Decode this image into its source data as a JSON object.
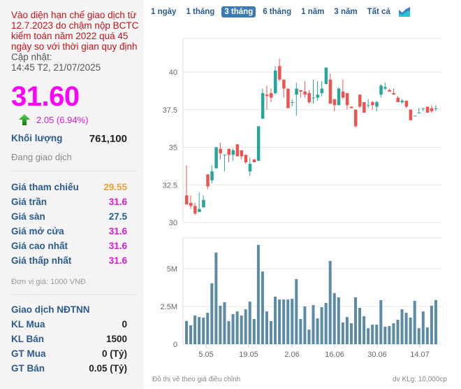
{
  "notice": "Vào diện hạn chế giao dịch từ 12.7.2023 do chậm nộp BCTC kiểm toán năm 2022 quá 45 ngày so với thời gian quy định",
  "update_label": "Cập nhật:",
  "update_time": "14:45 T2, 21/07/2025",
  "price": "31.60",
  "change": "2.05 (6.94%)",
  "change_direction_icon": "arrow-up-icon",
  "volume_label": "Khối lượng",
  "volume_value": "761,100",
  "status": "Đang giao dịch",
  "prices": [
    {
      "label": "Giá tham chiếu",
      "value": "29.55",
      "color": "#f0a030"
    },
    {
      "label": "Giá trần",
      "value": "31.6",
      "color": "#d61ad6"
    },
    {
      "label": "Giá sàn",
      "value": "27.5",
      "color": "#1f5f8b"
    },
    {
      "label": "Giá mở cửa",
      "value": "31.6",
      "color": "#d61ad6"
    },
    {
      "label": "Giá cao nhất",
      "value": "31.6",
      "color": "#d61ad6"
    },
    {
      "label": "Giá thấp nhất",
      "value": "31.6",
      "color": "#d61ad6"
    }
  ],
  "unit": "Đơn vị giá: 1000 VNĐ",
  "foreign": {
    "title": "Giao dịch NĐTNN",
    "rows": [
      {
        "label": "KL Mua",
        "value": "0"
      },
      {
        "label": "KL Bán",
        "value": "1500"
      },
      {
        "label": "GT Mua",
        "value": "0 (Tỷ)"
      },
      {
        "label": "GT Bán",
        "value": "0.05 (Tỷ)"
      }
    ]
  },
  "tabs": [
    {
      "label": "1 ngày",
      "active": false
    },
    {
      "label": "1 tháng",
      "active": false
    },
    {
      "label": "3 tháng",
      "active": true
    },
    {
      "label": "6 tháng",
      "active": false
    },
    {
      "label": "1 năm",
      "active": false
    },
    {
      "label": "3 năm",
      "active": false
    },
    {
      "label": "Tất cả",
      "active": false
    }
  ],
  "footer_left": "Đồ thị vẽ theo giá điều chỉnh",
  "footer_right": "dv KLg: 10,000cp",
  "colors": {
    "up": "#26a69a",
    "down": "#ef5350",
    "volume": "#5b8ba6"
  },
  "chart_data": [
    {
      "type": "candlestick",
      "title": "",
      "ylim": [
        30,
        42.5
      ],
      "yticks": [
        "30",
        "32.5",
        "35",
        "37.5",
        "40"
      ],
      "grid": true,
      "ohlc": [
        [
          31.8,
          33.8,
          31.2,
          31.2
        ],
        [
          31.3,
          31.8,
          30.9,
          31.1
        ],
        [
          31.1,
          31.3,
          30.5,
          30.6
        ],
        [
          30.7,
          32.0,
          30.7,
          30.9
        ],
        [
          31.0,
          31.8,
          31.0,
          31.5
        ],
        [
          33.2,
          33.2,
          32.2,
          32.4
        ],
        [
          32.8,
          33.8,
          32.6,
          33.4
        ],
        [
          33.6,
          35.0,
          33.6,
          35.0
        ],
        [
          34.9,
          35.3,
          34.2,
          34.6
        ],
        [
          34.5,
          34.5,
          33.4,
          34.5
        ],
        [
          34.9,
          34.9,
          34.0,
          34.5
        ],
        [
          34.5,
          34.9,
          34.1,
          34.8
        ],
        [
          35.2,
          35.2,
          34.4,
          34.4
        ],
        [
          34.8,
          34.8,
          34.2,
          34.4
        ],
        [
          34.5,
          34.5,
          33.9,
          34.0
        ],
        [
          33.4,
          34.3,
          33.1,
          33.9
        ],
        [
          34.2,
          34.2,
          34.0,
          34.0
        ],
        [
          34.1,
          36.4,
          34.1,
          36.4
        ],
        [
          36.9,
          38.9,
          36.9,
          38.6
        ],
        [
          38.5,
          39.1,
          37.5,
          38.4
        ],
        [
          38.6,
          38.9,
          38.0,
          38.3
        ],
        [
          38.6,
          40.4,
          38.5,
          40.1
        ],
        [
          40.4,
          40.9,
          39.4,
          39.5
        ],
        [
          39.5,
          39.5,
          38.3,
          38.9
        ],
        [
          38.9,
          38.9,
          37.6,
          37.6
        ],
        [
          38.0,
          38.2,
          37.7,
          38.0
        ],
        [
          38.5,
          39.3,
          37.1,
          38.9
        ],
        [
          38.8,
          38.8,
          38.3,
          38.7
        ],
        [
          38.7,
          39.4,
          38.3,
          38.5
        ],
        [
          38.6,
          38.8,
          37.9,
          38.0
        ],
        [
          38.3,
          39.5,
          37.9,
          38.3
        ],
        [
          38.3,
          39.4,
          38.1,
          38.5
        ],
        [
          38.6,
          39.4,
          38.4,
          38.9
        ],
        [
          39.2,
          40.3,
          39.2,
          40.3
        ],
        [
          39.5,
          39.9,
          37.9,
          37.9
        ],
        [
          38.2,
          38.2,
          37.4,
          37.8
        ],
        [
          37.8,
          39.0,
          37.8,
          38.9
        ],
        [
          38.7,
          39.5,
          38.2,
          38.3
        ],
        [
          38.6,
          38.6,
          37.5,
          37.8
        ],
        [
          37.7,
          37.7,
          37.6,
          37.6
        ],
        [
          37.5,
          37.5,
          36.3,
          36.4
        ],
        [
          38.5,
          38.5,
          37.6,
          37.7
        ],
        [
          38.0,
          38.0,
          37.3,
          37.3
        ],
        [
          37.8,
          38.2,
          37.6,
          37.8
        ],
        [
          38.0,
          38.1,
          37.5,
          37.8
        ],
        [
          37.7,
          38.1,
          37.4,
          38.0
        ],
        [
          38.5,
          39.2,
          38.3,
          39.1
        ],
        [
          38.9,
          39.3,
          38.8,
          39.0
        ],
        [
          38.8,
          38.9,
          38.7,
          38.7
        ],
        [
          38.6,
          38.9,
          38.5,
          38.5
        ],
        [
          38.3,
          38.4,
          38.0,
          38.0
        ],
        [
          38.0,
          38.2,
          37.9,
          38.1
        ],
        [
          38.1,
          38.1,
          37.6,
          37.7
        ],
        [
          37.5,
          37.5,
          36.8,
          36.8
        ],
        [
          37.1,
          37.1,
          37.1,
          37.1
        ],
        [
          37.3,
          37.6,
          37.3,
          37.3
        ],
        [
          37.6,
          37.6,
          37.4,
          37.6
        ],
        [
          37.7,
          37.7,
          37.3,
          37.3
        ],
        [
          37.6,
          37.8,
          37.3,
          37.4
        ],
        [
          37.6,
          37.8,
          37.4,
          37.6
        ]
      ]
    },
    {
      "type": "bar",
      "title": "Khối lượng",
      "ylabel": "dv KLg: 10,000cp",
      "ylim": [
        0,
        7
      ],
      "yticks": [
        "0",
        "2.5M",
        "5M"
      ],
      "xticks": [
        "5.05",
        "19.05",
        "2.06",
        "16.06",
        "30.06",
        "14.07"
      ],
      "values": [
        1.54,
        1.25,
        1.9,
        1.8,
        1.76,
        2.08,
        4.03,
        6.06,
        2.55,
        2.78,
        1.53,
        1.99,
        2.17,
        1.9,
        2.31,
        2.82,
        1.67,
        6.57,
        4.81,
        2.17,
        1.53,
        3.15,
        2.96,
        2.96,
        2.96,
        3.01,
        4.31,
        1.67,
        2.5,
        0.97,
        2.59,
        1.71,
        2.45,
        2.73,
        5.51,
        3.38,
        3.1,
        1.44,
        1.8,
        1.39,
        3.1,
        2.41,
        1.85,
        1.06,
        1.3,
        1.3,
        2.92,
        1.16,
        1.2,
        1.39,
        1.62,
        2.31,
        2.08,
        1.76,
        2.87,
        1.06,
        2.17,
        1.11,
        2.55,
        2.92
      ]
    }
  ]
}
